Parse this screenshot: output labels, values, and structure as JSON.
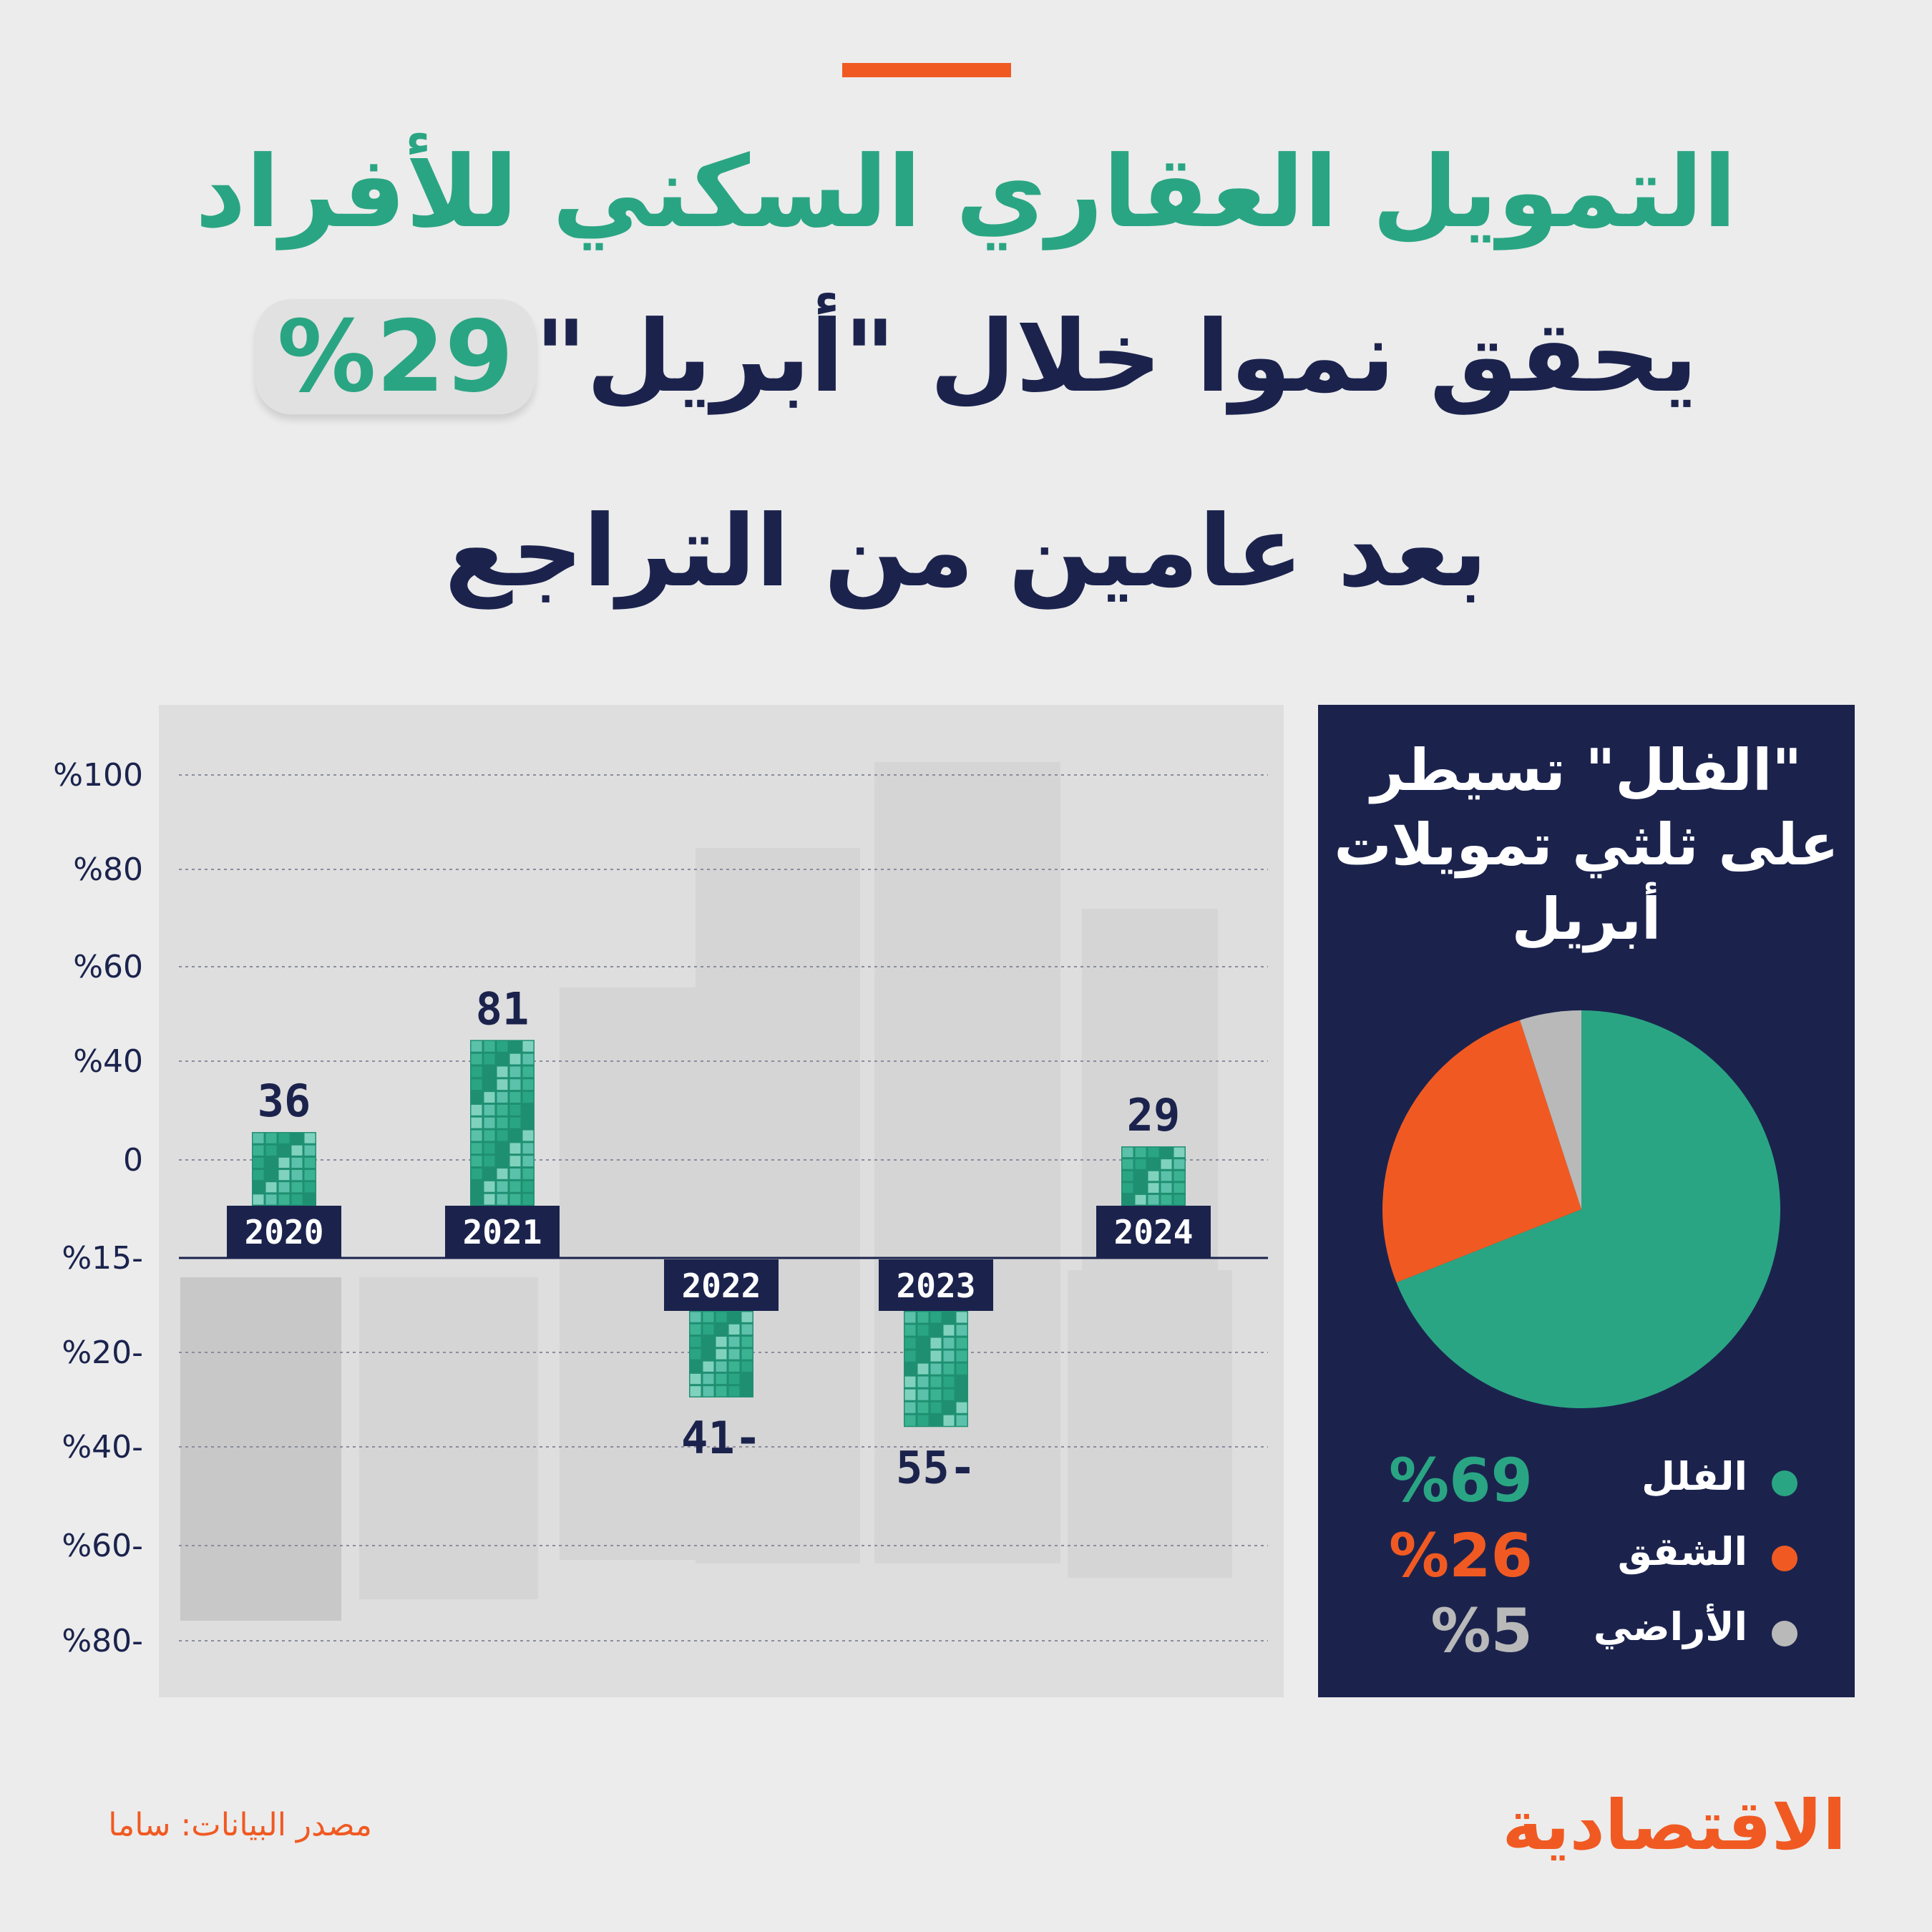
{
  "header": {
    "line1": "التمويل العقاري السكني للأفراد",
    "line2": "يحقق نموا خلال \"أبريل\"",
    "badge": "%29",
    "line3": "بعد عامين من التراجع"
  },
  "chart_data": [
    {
      "type": "bar",
      "title": "",
      "categories": [
        "2020",
        "2021",
        "2022",
        "2023",
        "2024"
      ],
      "values": [
        36,
        81,
        -41,
        -55,
        29
      ],
      "value_labels": [
        "36",
        "81",
        "41-",
        "55-",
        "29"
      ],
      "yticks": [
        "%100",
        "%80",
        "%60",
        "%40",
        "0",
        "%15-",
        "%20-",
        "%40-",
        "%60-",
        "%80-"
      ],
      "series_color": "#2aa583",
      "grid": true,
      "xlabel": "",
      "ylabel": ""
    },
    {
      "type": "pie",
      "title": "\"الفلل\" تسيطر على ثلثي تمويلات أبريل",
      "labels": [
        "الفلل",
        "الشقق",
        "الأراضي"
      ],
      "values": [
        69,
        26,
        5
      ],
      "value_labels": [
        "%69",
        "%26",
        "%5"
      ],
      "colors": [
        "#2aa583",
        "#f05a22",
        "#b9b9b9"
      ]
    }
  ],
  "footer": {
    "source": "مصدر البيانات: ساما",
    "logo": "الاقتصادية"
  }
}
